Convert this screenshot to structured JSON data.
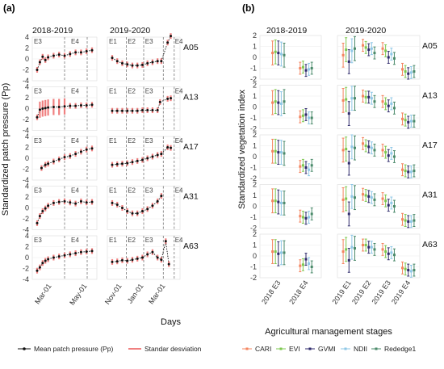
{
  "panel_a_label": "(a)",
  "panel_b_label": "(b)",
  "chart_data": [
    {
      "type": "scatter",
      "panel": "(a)",
      "ylabel": "Standardized patch pressure (Pp)",
      "xlabel": "Days",
      "seasons": [
        "2018-2019",
        "2019-2020"
      ],
      "season1_xticks": [
        "Mar-01",
        "May-01"
      ],
      "season2_xticks": [
        "Nov-01",
        "Jan-01",
        "Mar-01"
      ],
      "yticks": [
        "4",
        "2",
        "0",
        "-2",
        "-4"
      ],
      "ylim": [
        -4,
        4
      ],
      "stage_labels_season1": [
        "E3",
        "E4"
      ],
      "stage_labels_season2": [
        "E1",
        "E2",
        "E3",
        "E4"
      ],
      "rows": [
        "A05",
        "A13",
        "A17",
        "A31",
        "A63"
      ],
      "legend": [
        "Mean patch pressure (Pp)",
        "Standar desviation"
      ],
      "colors": {
        "points": "#111111",
        "sd": "#f08080",
        "dashed": "#888888"
      },
      "series": [
        {
          "site": "A05",
          "season1": [
            [
              0.0,
              -2.0
            ],
            [
              0.05,
              -0.6
            ],
            [
              0.1,
              0.4
            ],
            [
              0.15,
              -0.2
            ],
            [
              0.2,
              0.3
            ],
            [
              0.3,
              0.6
            ],
            [
              0.4,
              0.8
            ],
            [
              0.5,
              0.6
            ],
            [
              0.6,
              0.9
            ],
            [
              0.7,
              1.2
            ],
            [
              0.8,
              1.2
            ],
            [
              0.9,
              1.4
            ],
            [
              1.0,
              1.6
            ]
          ],
          "season2": [
            [
              0.0,
              0.2
            ],
            [
              0.08,
              -0.4
            ],
            [
              0.16,
              -0.8
            ],
            [
              0.24,
              -1.0
            ],
            [
              0.32,
              -1.2
            ],
            [
              0.4,
              -1.2
            ],
            [
              0.48,
              -1.1
            ],
            [
              0.56,
              -0.8
            ],
            [
              0.64,
              -0.6
            ],
            [
              0.72,
              -0.4
            ],
            [
              0.78,
              -0.4
            ],
            [
              0.88,
              3.0
            ],
            [
              0.93,
              4.2
            ]
          ]
        },
        {
          "site": "A13",
          "season1": [
            [
              0.0,
              -1.6
            ],
            [
              0.05,
              -0.2
            ],
            [
              0.1,
              0.0
            ],
            [
              0.15,
              0.1
            ],
            [
              0.2,
              0.2
            ],
            [
              0.3,
              0.3
            ],
            [
              0.4,
              0.3
            ],
            [
              0.5,
              0.4
            ],
            [
              0.6,
              0.5
            ],
            [
              0.7,
              0.5
            ],
            [
              0.8,
              0.6
            ],
            [
              0.9,
              0.6
            ],
            [
              1.0,
              0.7
            ]
          ],
          "season2": [
            [
              0.0,
              -0.4
            ],
            [
              0.08,
              -0.4
            ],
            [
              0.16,
              -0.4
            ],
            [
              0.24,
              -0.4
            ],
            [
              0.32,
              -0.4
            ],
            [
              0.4,
              -0.4
            ],
            [
              0.48,
              -0.3
            ],
            [
              0.56,
              -0.3
            ],
            [
              0.64,
              -0.3
            ],
            [
              0.72,
              -0.3
            ],
            [
              0.76,
              1.2
            ],
            [
              0.88,
              1.8
            ],
            [
              0.93,
              1.9
            ]
          ]
        },
        {
          "site": "A17",
          "season1": [
            [
              0.08,
              -1.8
            ],
            [
              0.15,
              -1.2
            ],
            [
              0.2,
              -1.0
            ],
            [
              0.3,
              -0.6
            ],
            [
              0.4,
              -0.2
            ],
            [
              0.5,
              0.2
            ],
            [
              0.6,
              0.4
            ],
            [
              0.7,
              0.8
            ],
            [
              0.8,
              1.2
            ],
            [
              0.9,
              1.6
            ],
            [
              1.0,
              1.8
            ]
          ],
          "season2": [
            [
              0.0,
              -1.2
            ],
            [
              0.08,
              -1.1
            ],
            [
              0.16,
              -1.0
            ],
            [
              0.24,
              -0.9
            ],
            [
              0.32,
              -0.7
            ],
            [
              0.4,
              -0.5
            ],
            [
              0.48,
              -0.3
            ],
            [
              0.56,
              0.0
            ],
            [
              0.64,
              0.3
            ],
            [
              0.72,
              0.6
            ],
            [
              0.78,
              0.8
            ],
            [
              0.88,
              2.0
            ],
            [
              0.93,
              1.9
            ]
          ]
        },
        {
          "site": "A31",
          "season1": [
            [
              0.0,
              -2.8
            ],
            [
              0.05,
              -1.5
            ],
            [
              0.1,
              -0.6
            ],
            [
              0.15,
              -0.1
            ],
            [
              0.2,
              0.4
            ],
            [
              0.3,
              0.9
            ],
            [
              0.4,
              1.1
            ],
            [
              0.5,
              1.2
            ],
            [
              0.6,
              1.0
            ],
            [
              0.7,
              0.8
            ],
            [
              0.8,
              1.2
            ],
            [
              0.9,
              1.0
            ],
            [
              1.0,
              1.1
            ]
          ],
          "season2": [
            [
              0.0,
              0.9
            ],
            [
              0.08,
              0.6
            ],
            [
              0.16,
              0.0
            ],
            [
              0.24,
              -0.6
            ],
            [
              0.32,
              -1.0
            ],
            [
              0.4,
              -1.0
            ],
            [
              0.48,
              -0.6
            ],
            [
              0.56,
              -0.2
            ],
            [
              0.64,
              0.4
            ],
            [
              0.72,
              1.2
            ],
            [
              0.78,
              2.2
            ]
          ]
        },
        {
          "site": "A63",
          "season1": [
            [
              0.0,
              -2.4
            ],
            [
              0.05,
              -1.8
            ],
            [
              0.1,
              -1.0
            ],
            [
              0.15,
              -0.6
            ],
            [
              0.2,
              -0.3
            ],
            [
              0.3,
              0.0
            ],
            [
              0.4,
              0.2
            ],
            [
              0.5,
              0.4
            ],
            [
              0.6,
              0.6
            ],
            [
              0.7,
              0.8
            ],
            [
              0.8,
              1.0
            ],
            [
              0.9,
              1.1
            ],
            [
              1.0,
              1.2
            ]
          ],
          "season2": [
            [
              0.0,
              -0.8
            ],
            [
              0.08,
              -0.7
            ],
            [
              0.16,
              -0.5
            ],
            [
              0.24,
              -0.6
            ],
            [
              0.32,
              -0.4
            ],
            [
              0.4,
              -0.2
            ],
            [
              0.48,
              0.0
            ],
            [
              0.56,
              0.6
            ],
            [
              0.64,
              1.0
            ],
            [
              0.72,
              0.0
            ],
            [
              0.78,
              -0.4
            ],
            [
              0.85,
              3.0
            ],
            [
              0.9,
              -1.2
            ]
          ]
        }
      ]
    },
    {
      "type": "errorbar",
      "panel": "(b)",
      "ylabel": "Standardized vegetation index",
      "xlabel": "Agricultural management stages",
      "seasons": [
        "2018-2019",
        "2019-2020"
      ],
      "categories_season1": [
        "2018 E3",
        "2018 E4"
      ],
      "categories_season2": [
        "2019 E1",
        "2019 E2",
        "2019 E3",
        "2019 E4"
      ],
      "yticks": [
        "2",
        "1",
        "0",
        "-1",
        "-2"
      ],
      "ylim": [
        -2,
        2
      ],
      "rows": [
        "A05",
        "A13",
        "A17",
        "A31",
        "A63"
      ],
      "indices": [
        "CARI",
        "EVI",
        "GVMI",
        "NDII",
        "Rededge1"
      ],
      "colors": {
        "CARI": "#f4845f",
        "EVI": "#7ec850",
        "GVMI": "#2e2a6b",
        "NDII": "#8ec7e6",
        "Rededge1": "#4a8a6a"
      },
      "series": [
        {
          "site": "A05",
          "means": [
            [
              0.4,
              0.5,
              0.4,
              0.3,
              0.2
            ],
            [
              -1.0,
              -0.9,
              -1.2,
              -1.1,
              -1.0
            ],
            [
              0.2,
              0.7,
              -0.4,
              0.6,
              0.8
            ],
            [
              1.1,
              0.9,
              0.7,
              0.8,
              0.4
            ],
            [
              0.8,
              0.6,
              0.0,
              0.3,
              -0.1
            ],
            [
              -1.1,
              -1.3,
              -1.5,
              -1.4,
              -1.3
            ]
          ]
        },
        {
          "site": "A13",
          "means": [
            [
              0.4,
              0.5,
              0.4,
              0.3,
              0.5
            ],
            [
              -0.9,
              -0.8,
              -0.7,
              -1.0,
              -1.0
            ],
            [
              0.6,
              0.7,
              -0.6,
              0.8,
              0.8
            ],
            [
              1.0,
              0.9,
              0.9,
              0.8,
              0.5
            ],
            [
              0.5,
              0.3,
              0.1,
              0.3,
              -0.1
            ],
            [
              -1.1,
              -1.2,
              -1.4,
              -1.3,
              -1.3
            ]
          ]
        },
        {
          "site": "A17",
          "means": [
            [
              0.5,
              0.5,
              0.4,
              0.4,
              0.3
            ],
            [
              -0.9,
              -0.8,
              -1.0,
              -1.2,
              -0.8
            ],
            [
              0.6,
              0.7,
              -0.6,
              0.9,
              0.8
            ],
            [
              1.2,
              1.0,
              0.9,
              0.8,
              0.6
            ],
            [
              0.6,
              0.4,
              0.1,
              0.3,
              0.0
            ],
            [
              -1.2,
              -1.3,
              -1.4,
              -1.4,
              -1.3
            ]
          ]
        },
        {
          "site": "A31",
          "means": [
            [
              0.5,
              0.5,
              0.4,
              0.3,
              0.3
            ],
            [
              -0.9,
              -1.0,
              -1.1,
              -1.0,
              -0.7
            ],
            [
              0.6,
              0.7,
              -0.7,
              0.9,
              0.8
            ],
            [
              1.1,
              1.0,
              0.9,
              0.8,
              0.6
            ],
            [
              0.7,
              0.5,
              0.1,
              0.3,
              0.0
            ],
            [
              -1.2,
              -1.3,
              -1.4,
              -1.4,
              -1.3
            ]
          ]
        },
        {
          "site": "A63",
          "means": [
            [
              0.4,
              0.4,
              0.2,
              0.3,
              0.3
            ],
            [
              -0.9,
              -0.8,
              -0.3,
              -0.7,
              -1.0
            ],
            [
              0.4,
              0.6,
              -0.4,
              0.8,
              0.7
            ],
            [
              1.0,
              1.0,
              0.8,
              0.8,
              0.6
            ],
            [
              0.6,
              0.4,
              0.2,
              0.3,
              0.1
            ],
            [
              -1.1,
              -1.2,
              -1.3,
              -1.4,
              -1.3
            ]
          ]
        }
      ]
    }
  ]
}
